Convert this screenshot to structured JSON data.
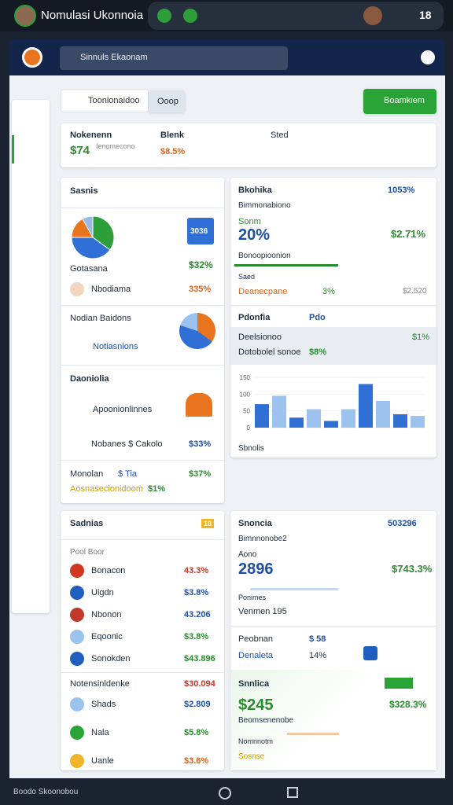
{
  "status_bar": {
    "title": "Nomulasi Ukonnoia",
    "time": "18"
  },
  "app_bar": {
    "search": "Sinnuls Ekaonam"
  },
  "toolbar": {
    "search": "Toonionaidoo",
    "chip": "Ooop",
    "button": "Boamkiem"
  },
  "summary": [
    {
      "label": "Nokenenn",
      "value": "$74",
      "note": "Ienomecono"
    },
    {
      "label": "Blenk",
      "value": "$8.5%"
    },
    {
      "label": "Sted"
    }
  ],
  "left_top": {
    "title": "Sasnis",
    "badge": "3036",
    "pie": {
      "values": [
        35,
        40,
        17,
        8
      ],
      "colors": [
        "#2e9e3a",
        "#2f6fd6",
        "#e8741e",
        "#9ab8e8"
      ]
    },
    "rows": [
      [
        "Gotasana",
        "$32%"
      ],
      [
        "Nbodiama",
        "335%"
      ]
    ],
    "section2": "Nodian Baidons",
    "row2": "Notiasnions",
    "section3": "Daoniolia",
    "row3a": "Apoonionlinnes",
    "row3b": [
      "Nobanes $ Cakolo",
      "$33%"
    ],
    "section4": [
      "Monolan",
      "$ Tia",
      "$37%"
    ],
    "footer": [
      "Aosnasecionidoom",
      "$1%"
    ]
  },
  "right_top": {
    "title": "Bkohika",
    "stat": "1053%",
    "subtitle": "Bimmonabiono",
    "label": "Sonm",
    "big": "20%",
    "side": "$2.71%",
    "line1": "Bonoopioonion",
    "line2": "Saed",
    "line3": [
      "Deanecpane",
      "3%",
      "$2.520"
    ],
    "section2": [
      "Pdonfia",
      "Pdo"
    ],
    "row2a": [
      "Deelsionoo",
      "$1%"
    ],
    "row2b": [
      "Dotobolel sonoe",
      "$8%"
    ],
    "chart": {
      "type": "bar",
      "values": [
        70,
        95,
        30,
        55,
        20,
        55,
        130,
        80,
        40,
        35
      ],
      "colors": [
        "#2f6fd6",
        "#9cc3ee"
      ],
      "ylim": [
        0,
        150
      ],
      "yticks": [
        0,
        50,
        100,
        150
      ]
    },
    "footer": "Sbnolis"
  },
  "left_bottom": {
    "title": "Sadnias",
    "badge": "18",
    "header": "Pool Boor",
    "rows": [
      [
        "Bonacon",
        "43.3%"
      ],
      [
        "Uigdn",
        "$3.8%"
      ],
      [
        "Nbonon",
        "43.206"
      ],
      [
        "Eqoonic",
        "$3.8%"
      ],
      [
        "Sonokden",
        "$43.896"
      ]
    ],
    "section2": [
      "Notensinldenke",
      "$30.094"
    ],
    "rows2": [
      [
        "Shads",
        "$2.809"
      ],
      [
        "Nala",
        "$5.8%"
      ],
      [
        "Uanle",
        "$3.6%"
      ]
    ]
  },
  "right_bottom": {
    "title": "Snoncia",
    "stat": "503296",
    "subtitle": "Bimnnonobe2",
    "label": "Aono",
    "big": "2896",
    "side": "$743.3%",
    "line1": "Ponimes",
    "line2": "Venmen 195",
    "section2": [
      "Peobnan",
      "$ 58"
    ],
    "row2": [
      "Denaleta",
      "14%"
    ],
    "section3": "Snnlica",
    "big3": "$245",
    "side3": "$328.3%",
    "line3a": "Beomsenenobe",
    "line3b": "Nomnnotm",
    "line3c": "Sosnse"
  },
  "nav_bar": {
    "label": "Boodo Skoonobou"
  }
}
